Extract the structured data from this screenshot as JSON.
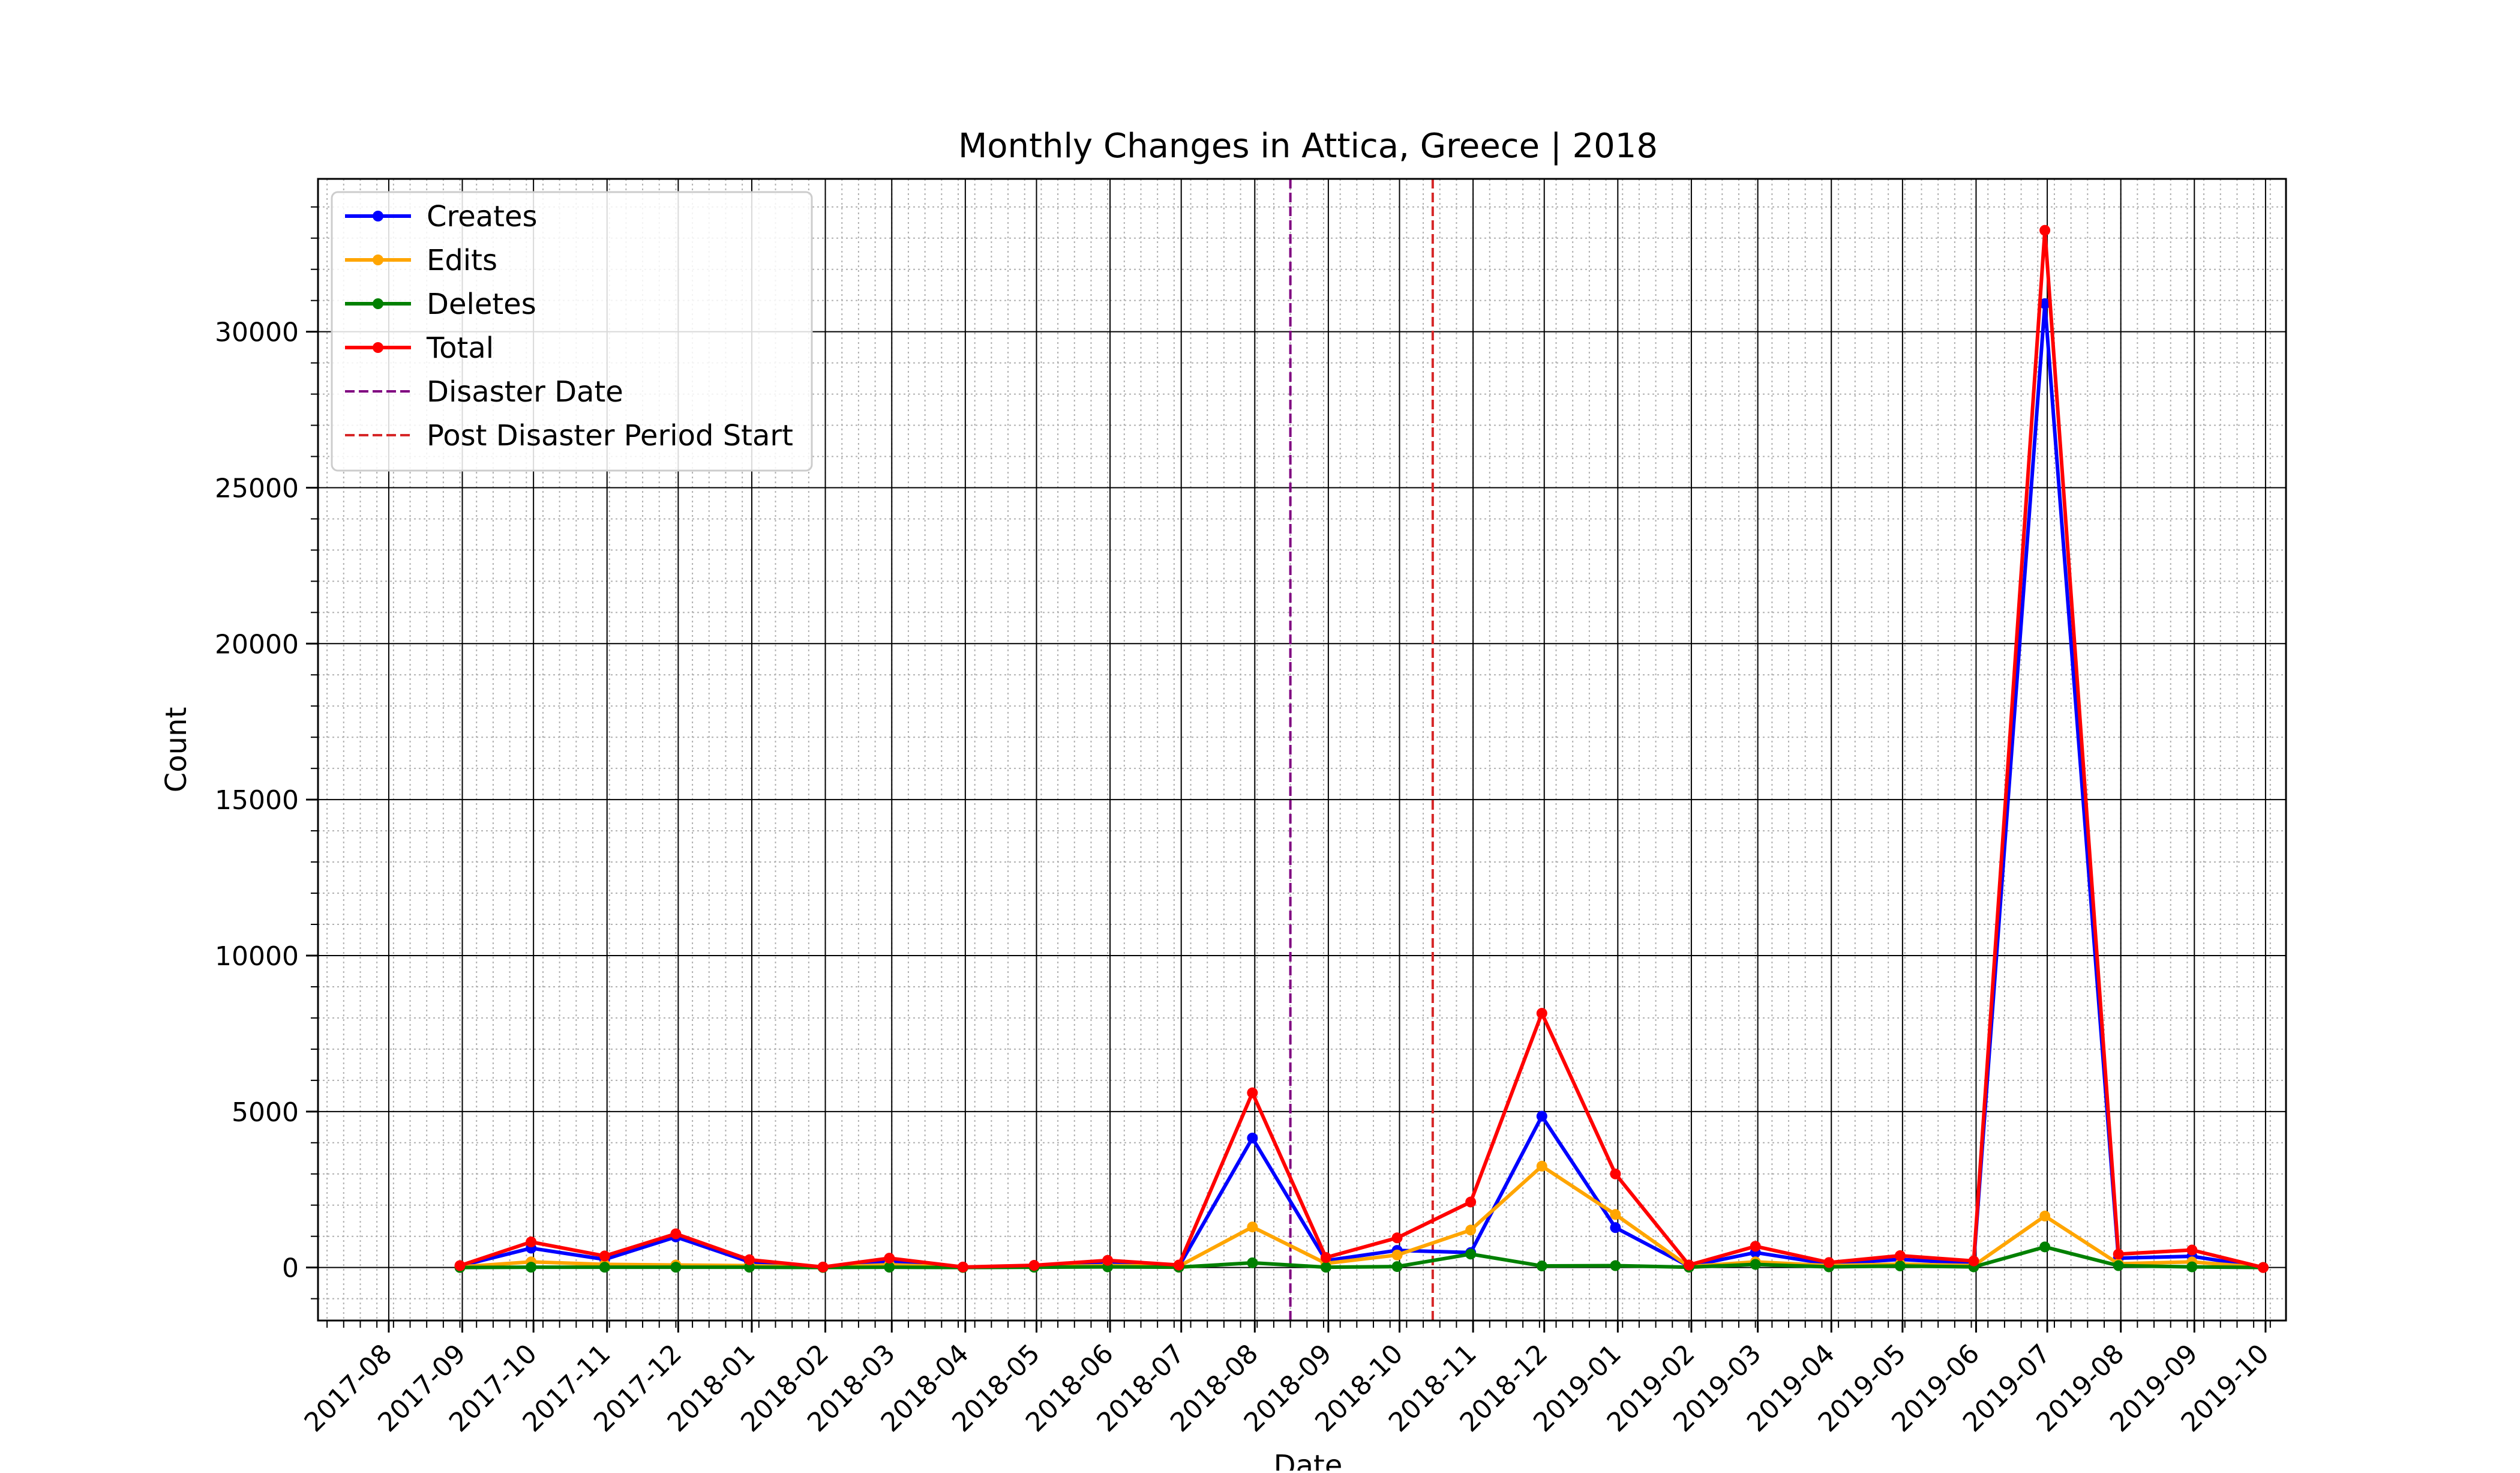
{
  "chart_data": {
    "type": "line",
    "title": "Monthly Changes in Attica, Greece | 2018",
    "xlabel": "Date",
    "ylabel": "Count",
    "x_ticks": [
      "2017-08",
      "2017-09",
      "2017-10",
      "2017-11",
      "2017-12",
      "2018-01",
      "2018-02",
      "2018-03",
      "2018-04",
      "2018-05",
      "2018-06",
      "2018-07",
      "2018-08",
      "2018-09",
      "2018-10",
      "2018-11",
      "2018-12",
      "2019-01",
      "2019-02",
      "2019-03",
      "2019-04",
      "2019-05",
      "2019-06",
      "2019-07",
      "2019-08",
      "2019-09",
      "2019-10"
    ],
    "y_ticks": [
      0,
      5000,
      10000,
      15000,
      20000,
      25000,
      30000
    ],
    "ylim": [
      -1700,
      34900
    ],
    "x": [
      "2017-08-31",
      "2017-09-30",
      "2017-10-31",
      "2017-11-30",
      "2017-12-31",
      "2018-01-31",
      "2018-02-28",
      "2018-03-31",
      "2018-04-30",
      "2018-05-31",
      "2018-06-30",
      "2018-07-31",
      "2018-08-31",
      "2018-09-30",
      "2018-10-31",
      "2018-11-30",
      "2018-12-31",
      "2019-01-31",
      "2019-02-28",
      "2019-03-31",
      "2019-04-30",
      "2019-05-31",
      "2019-06-30",
      "2019-07-31",
      "2019-08-31",
      "2019-09-30"
    ],
    "series": [
      {
        "name": "Creates",
        "color": "#0000ff",
        "values": [
          50,
          620,
          260,
          980,
          180,
          10,
          200,
          10,
          40,
          150,
          30,
          4150,
          220,
          550,
          480,
          4850,
          1280,
          40,
          480,
          110,
          260,
          130,
          30900,
          300,
          360,
          0
        ]
      },
      {
        "name": "Edits",
        "color": "#ffa500",
        "values": [
          20,
          180,
          100,
          80,
          60,
          5,
          90,
          5,
          20,
          60,
          40,
          1300,
          130,
          400,
          1200,
          3250,
          1700,
          30,
          180,
          60,
          110,
          60,
          1650,
          120,
          180,
          0
        ]
      },
      {
        "name": "Deletes",
        "color": "#008000",
        "values": [
          0,
          10,
          10,
          10,
          10,
          0,
          10,
          0,
          10,
          20,
          10,
          150,
          10,
          30,
          430,
          50,
          60,
          10,
          100,
          20,
          50,
          20,
          660,
          60,
          20,
          0
        ]
      },
      {
        "name": "Total",
        "color": "#ff0000",
        "values": [
          60,
          820,
          370,
          1080,
          250,
          15,
          300,
          15,
          70,
          230,
          80,
          5600,
          320,
          950,
          2100,
          8150,
          3000,
          80,
          680,
          160,
          380,
          210,
          33250,
          430,
          560,
          0
        ]
      }
    ],
    "vlines": [
      {
        "name": "Disaster Date",
        "date": "2018-08-16",
        "color": "#800080"
      },
      {
        "name": "Post Disaster Period Start",
        "date": "2018-10-15",
        "color": "#d62728"
      }
    ],
    "legend": "top-left",
    "grid": true
  }
}
